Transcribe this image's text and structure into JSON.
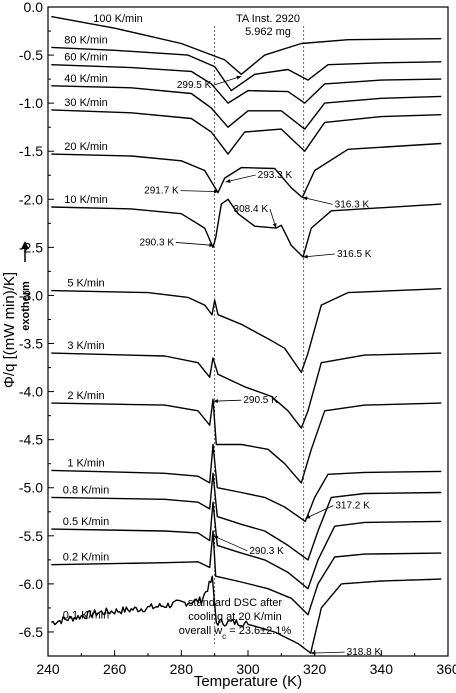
{
  "chart_data": {
    "type": "line",
    "xlabel": "Temperature  (K)",
    "ylabel": "Φ/q [(mW min)/K]",
    "ylabel_secondary": "exotherm",
    "xlim": [
      240,
      360
    ],
    "ylim": [
      -6.75,
      0
    ],
    "xticks": [
      240,
      260,
      280,
      300,
      320,
      340,
      360
    ],
    "yticks": [
      0.0,
      -0.5,
      -1.0,
      -1.5,
      -2.0,
      -2.5,
      -3.0,
      -3.5,
      -4.0,
      -4.5,
      -5.0,
      -5.5,
      -6.0,
      -6.5
    ],
    "ytick_labels": [
      "0.0",
      "-0.5",
      "-1.0",
      "-1.5",
      "-2.0",
      "-2.5",
      "-3.0",
      "-3.5",
      "-4.0",
      "-4.5",
      "-5.0",
      "-5.5",
      "-6.0",
      "-6.5"
    ],
    "vertical_reference_lines": [
      290,
      316.7
    ],
    "instrument": {
      "line1": "TA Inst. 2920",
      "line2": "5.962 mg"
    },
    "note": {
      "line1": "standard DSC after",
      "line2": "cooling at 20 K/min",
      "line3_main": "overall w",
      "line3_sub": "c",
      "line3_rest": " = 23.6±2.1%"
    },
    "series": [
      {
        "name": "100 K/min",
        "baseline": -0.33,
        "points": [
          [
            241,
            -0.1
          ],
          [
            260,
            -0.22
          ],
          [
            280,
            -0.38
          ],
          [
            293,
            -0.55
          ],
          [
            298,
            -0.7
          ],
          [
            305,
            -0.5
          ],
          [
            316,
            -0.38
          ],
          [
            330,
            -0.34
          ],
          [
            358,
            -0.33
          ]
        ]
      },
      {
        "name": "80 K/min",
        "baseline": -0.57,
        "points": [
          [
            241,
            -0.42
          ],
          [
            260,
            -0.45
          ],
          [
            282,
            -0.5
          ],
          [
            290,
            -0.62
          ],
          [
            295,
            -0.87
          ],
          [
            302,
            -0.7
          ],
          [
            312,
            -0.65
          ],
          [
            318,
            -0.76
          ],
          [
            324,
            -0.6
          ],
          [
            340,
            -0.58
          ],
          [
            358,
            -0.57
          ]
        ]
      },
      {
        "name": "60 K/min",
        "baseline": -0.75,
        "points": [
          [
            241,
            -0.6
          ],
          [
            265,
            -0.63
          ],
          [
            283,
            -0.67
          ],
          [
            289,
            -0.8
          ],
          [
            294,
            -1.0
          ],
          [
            300,
            -0.87
          ],
          [
            312,
            -0.88
          ],
          [
            317,
            -1.0
          ],
          [
            323,
            -0.8
          ],
          [
            340,
            -0.76
          ],
          [
            358,
            -0.75
          ]
        ]
      },
      {
        "name": "40 K/min",
        "baseline": -0.93,
        "points": [
          [
            241,
            -0.82
          ],
          [
            265,
            -0.84
          ],
          [
            283,
            -0.9
          ],
          [
            289,
            -1.05
          ],
          [
            294,
            -1.25
          ],
          [
            300,
            -1.08
          ],
          [
            310,
            -1.08
          ],
          [
            317,
            -1.27
          ],
          [
            323,
            -1.0
          ],
          [
            340,
            -0.95
          ],
          [
            358,
            -0.93
          ]
        ]
      },
      {
        "name": "30 K/min",
        "baseline": -1.12,
        "points": [
          [
            241,
            -1.07
          ],
          [
            265,
            -1.1
          ],
          [
            283,
            -1.16
          ],
          [
            289,
            -1.3
          ],
          [
            294,
            -1.53
          ],
          [
            299,
            -1.3
          ],
          [
            310,
            -1.27
          ],
          [
            317,
            -1.5
          ],
          [
            323,
            -1.2
          ],
          [
            340,
            -1.14
          ],
          [
            358,
            -1.12
          ]
        ]
      },
      {
        "name": "20 K/min",
        "baseline": -1.42,
        "points": [
          [
            241,
            -1.53
          ],
          [
            265,
            -1.55
          ],
          [
            280,
            -1.6
          ],
          [
            287,
            -1.7
          ],
          [
            291,
            -1.93
          ],
          [
            293,
            -1.78
          ],
          [
            298,
            -1.67
          ],
          [
            308,
            -1.68
          ],
          [
            313,
            -1.88
          ],
          [
            316.3,
            -1.98
          ],
          [
            320,
            -1.7
          ],
          [
            330,
            -1.48
          ],
          [
            358,
            -1.42
          ]
        ]
      },
      {
        "name": "10 K/min",
        "baseline": -2.05,
        "points": [
          [
            241,
            -2.08
          ],
          [
            265,
            -2.1
          ],
          [
            280,
            -2.15
          ],
          [
            287,
            -2.3
          ],
          [
            289.5,
            -2.5
          ],
          [
            290.3,
            -2.4
          ],
          [
            292,
            -2.05
          ],
          [
            294,
            -2.0
          ],
          [
            297,
            -2.15
          ],
          [
            302,
            -2.28
          ],
          [
            308.4,
            -2.3
          ],
          [
            310,
            -2.27
          ],
          [
            313,
            -2.48
          ],
          [
            316.5,
            -2.6
          ],
          [
            319,
            -2.3
          ],
          [
            325,
            -2.12
          ],
          [
            358,
            -2.05
          ]
        ]
      },
      {
        "name": "5 K/min",
        "baseline": -2.93,
        "points": [
          [
            241,
            -2.95
          ],
          [
            270,
            -2.97
          ],
          [
            282,
            -3.02
          ],
          [
            287,
            -3.1
          ],
          [
            289.2,
            -3.2
          ],
          [
            290,
            -3.05
          ],
          [
            291,
            -3.2
          ],
          [
            298,
            -3.3
          ],
          [
            306,
            -3.45
          ],
          [
            311,
            -3.55
          ],
          [
            316,
            -3.8
          ],
          [
            318,
            -3.6
          ],
          [
            322,
            -3.1
          ],
          [
            330,
            -2.97
          ],
          [
            358,
            -2.93
          ]
        ]
      },
      {
        "name": "3 K/min",
        "baseline": -3.6,
        "points": [
          [
            241,
            -3.6
          ],
          [
            275,
            -3.63
          ],
          [
            285,
            -3.7
          ],
          [
            288.5,
            -3.85
          ],
          [
            289.5,
            -3.65
          ],
          [
            291,
            -3.82
          ],
          [
            299,
            -3.95
          ],
          [
            307,
            -4.05
          ],
          [
            312,
            -4.2
          ],
          [
            316,
            -4.38
          ],
          [
            318,
            -4.2
          ],
          [
            322,
            -3.7
          ],
          [
            335,
            -3.62
          ],
          [
            358,
            -3.6
          ]
        ]
      },
      {
        "name": "2 K/min",
        "baseline": -4.12,
        "points": [
          [
            241,
            -4.12
          ],
          [
            275,
            -4.14
          ],
          [
            285,
            -4.2
          ],
          [
            288.5,
            -4.35
          ],
          [
            289.5,
            -4.08
          ],
          [
            290.5,
            -4.55
          ],
          [
            298,
            -4.55
          ],
          [
            306,
            -4.6
          ],
          [
            311,
            -4.75
          ],
          [
            316,
            -4.95
          ],
          [
            319,
            -4.6
          ],
          [
            323,
            -4.2
          ],
          [
            335,
            -4.14
          ],
          [
            358,
            -4.12
          ]
        ]
      },
      {
        "name": "1 K/min",
        "baseline": -4.83,
        "points": [
          [
            241,
            -4.82
          ],
          [
            275,
            -4.85
          ],
          [
            285,
            -4.88
          ],
          [
            288.5,
            -4.95
          ],
          [
            289.5,
            -4.55
          ],
          [
            290.8,
            -5.0
          ],
          [
            298,
            -5.05
          ],
          [
            305,
            -5.1
          ],
          [
            311,
            -5.2
          ],
          [
            317.2,
            -5.35
          ],
          [
            320,
            -5.1
          ],
          [
            324,
            -4.86
          ],
          [
            335,
            -4.84
          ],
          [
            358,
            -4.83
          ]
        ]
      },
      {
        "name": "0.8 K/min",
        "baseline": -5.05,
        "points": [
          [
            241,
            -5.1
          ],
          [
            275,
            -5.12
          ],
          [
            285,
            -5.15
          ],
          [
            288.5,
            -5.22
          ],
          [
            289.5,
            -4.85
          ],
          [
            290.8,
            -5.3
          ],
          [
            298,
            -5.38
          ],
          [
            305,
            -5.45
          ],
          [
            312,
            -5.6
          ],
          [
            318,
            -5.75
          ],
          [
            321,
            -5.45
          ],
          [
            325,
            -5.1
          ],
          [
            335,
            -5.06
          ],
          [
            358,
            -5.05
          ]
        ]
      },
      {
        "name": "0.5 K/min",
        "baseline": -5.35,
        "points": [
          [
            241,
            -5.43
          ],
          [
            275,
            -5.45
          ],
          [
            285,
            -5.47
          ],
          [
            288.5,
            -5.55
          ],
          [
            289.5,
            -5.15
          ],
          [
            290.8,
            -5.6
          ],
          [
            298,
            -5.68
          ],
          [
            305,
            -5.75
          ],
          [
            312,
            -5.88
          ],
          [
            318,
            -6.05
          ],
          [
            321,
            -5.75
          ],
          [
            326,
            -5.4
          ],
          [
            335,
            -5.36
          ],
          [
            358,
            -5.35
          ]
        ]
      },
      {
        "name": "0.2 K/min",
        "baseline": -5.68,
        "points": [
          [
            241,
            -5.8
          ],
          [
            275,
            -5.78
          ],
          [
            285,
            -5.77
          ],
          [
            288.5,
            -5.83
          ],
          [
            289.5,
            -5.45
          ],
          [
            290.3,
            -5.92
          ],
          [
            298,
            -5.98
          ],
          [
            306,
            -6.05
          ],
          [
            313,
            -6.15
          ],
          [
            318,
            -6.32
          ],
          [
            321,
            -6.0
          ],
          [
            326,
            -5.72
          ],
          [
            335,
            -5.69
          ],
          [
            358,
            -5.68
          ]
        ]
      },
      {
        "name": "0.1 K/min",
        "baseline": -5.95,
        "noisy": true,
        "points": [
          [
            241,
            -6.4
          ],
          [
            255,
            -6.3
          ],
          [
            270,
            -6.25
          ],
          [
            280,
            -6.2
          ],
          [
            286,
            -6.17
          ],
          [
            289.3,
            -5.95
          ],
          [
            290.5,
            -6.4
          ],
          [
            298,
            -6.4
          ],
          [
            308,
            -6.5
          ],
          [
            315,
            -6.62
          ],
          [
            318.8,
            -6.72
          ],
          [
            322,
            -6.25
          ],
          [
            328,
            -6.0
          ],
          [
            340,
            -5.97
          ],
          [
            358,
            -5.95
          ]
        ]
      }
    ],
    "annotations": [
      {
        "text": "299.5 K",
        "x": 298,
        "y": -0.72
      },
      {
        "text": "291.7 K",
        "x": 291.2,
        "y": -1.92
      },
      {
        "text": "293.3 K",
        "x": 293.3,
        "y": -1.82
      },
      {
        "text": "316.3 K",
        "x": 316.4,
        "y": -1.98
      },
      {
        "text": "308.4 K",
        "x": 308.4,
        "y": -2.3
      },
      {
        "text": "290.3 K",
        "x": 289.8,
        "y": -2.48
      },
      {
        "text": "316.5 K",
        "x": 316.5,
        "y": -2.6
      },
      {
        "text": "290.5 K",
        "x": 289.6,
        "y": -4.1
      },
      {
        "text": "317.2 K",
        "x": 317.2,
        "y": -5.32
      },
      {
        "text": "290.3 K",
        "x": 289.6,
        "y": -5.5
      },
      {
        "text": "318.8 K",
        "x": 318.8,
        "y": -6.72
      }
    ]
  }
}
